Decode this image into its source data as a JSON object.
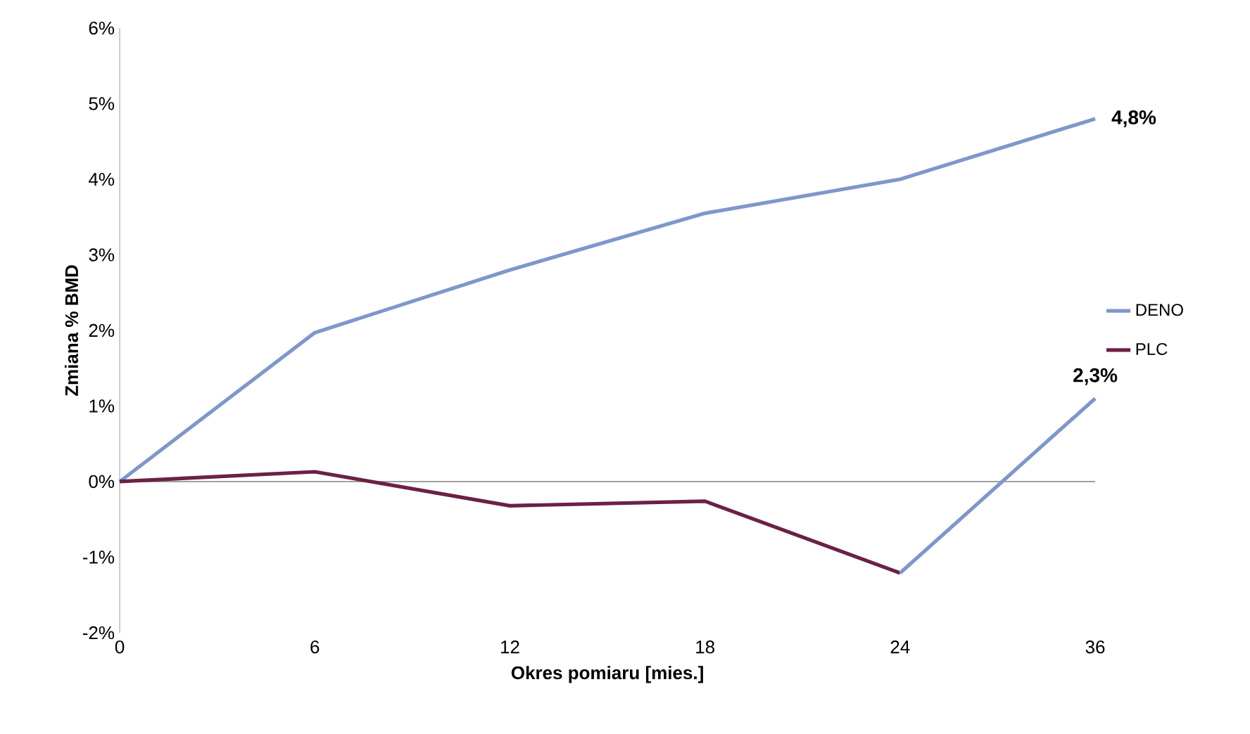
{
  "chart_data": {
    "type": "line",
    "xlabel": "Okres pomiaru [mies.]",
    "ylabel": "Zmiana % BMD",
    "categories": [
      "0",
      "6",
      "12",
      "18",
      "24",
      "36"
    ],
    "series": [
      {
        "name": "DENO",
        "color": "#7f97c9",
        "values": [
          0,
          1.97,
          2.8,
          3.55,
          4.0,
          4.8
        ]
      },
      {
        "name": "PLC",
        "color": "#6b2146",
        "values": [
          0,
          0.13,
          -0.32,
          -0.26,
          -1.21,
          null
        ]
      },
      {
        "color": "#7f97c9",
        "values": [
          null,
          null,
          null,
          null,
          -1.21,
          1.1
        ]
      }
    ],
    "ylim": [
      -2,
      6
    ],
    "yticks": [
      {
        "value": -2,
        "label": "-2%"
      },
      {
        "value": -1,
        "label": "-1%"
      },
      {
        "value": 0,
        "label": "0%"
      },
      {
        "value": 1,
        "label": "1%"
      },
      {
        "value": 2,
        "label": "2%"
      },
      {
        "value": 3,
        "label": "3%"
      },
      {
        "value": 4,
        "label": "4%"
      },
      {
        "value": 5,
        "label": "5%"
      },
      {
        "value": 6,
        "label": "6%"
      }
    ],
    "annotations": [
      {
        "text": "4,8%",
        "x": "36",
        "y": 4.8
      },
      {
        "text": "2,3%",
        "x": "36",
        "y": 1.1
      }
    ],
    "ref_lines": [
      {
        "axis": "y",
        "value": 0,
        "color": "#808080"
      }
    ],
    "legend": "right",
    "grid": false,
    "marker": "none",
    "line_style": "solid"
  }
}
